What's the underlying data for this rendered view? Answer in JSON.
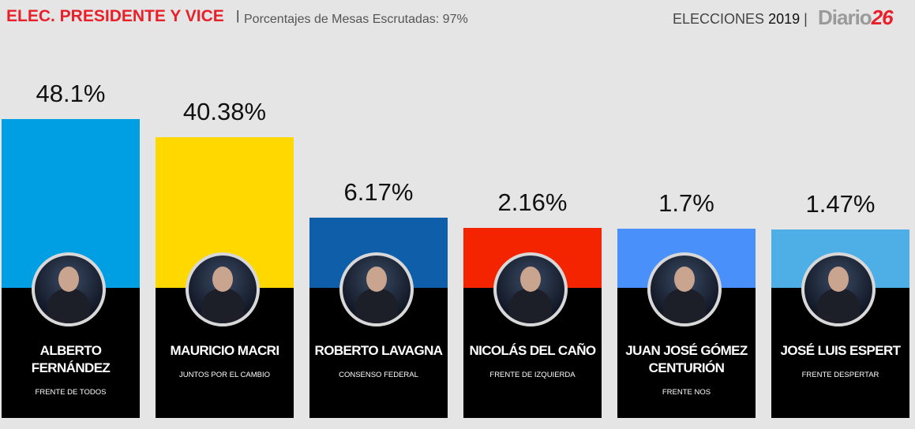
{
  "chart_data": {
    "type": "bar",
    "title": "ELEC. PRESIDENTE Y VICE",
    "subtitle": "Porcentajes de Mesas Escrutadas: 97%",
    "header_right": "ELECCIONES",
    "header_year": "2019",
    "logo": {
      "text": "Diario",
      "number": "26"
    },
    "categories": [
      "ALBERTO FERNÁNDEZ",
      "MAURICIO MACRI",
      "ROBERTO LAVAGNA",
      "NICOLÁS DEL CAÑO",
      "JUAN JOSÉ GÓMEZ CENTURIÓN",
      "JOSÉ LUIS ESPERT"
    ],
    "parties": [
      "FRENTE DE TODOS",
      "JUNTOS POR EL CAMBIO",
      "CONSENSO FEDERAL",
      "FRENTE DE IZQUIERDA",
      "FRENTE NOS",
      "FRENTE DESPERTAR"
    ],
    "values": [
      48.1,
      40.38,
      6.17,
      2.16,
      1.7,
      1.47
    ],
    "value_labels": [
      "48.1%",
      "40.38%",
      "6.17%",
      "2.16%",
      "1.7%",
      "1.47%"
    ],
    "colors": [
      "#009fe3",
      "#ffd800",
      "#0e5ea9",
      "#f42300",
      "#4990fa",
      "#4eaee6"
    ]
  }
}
